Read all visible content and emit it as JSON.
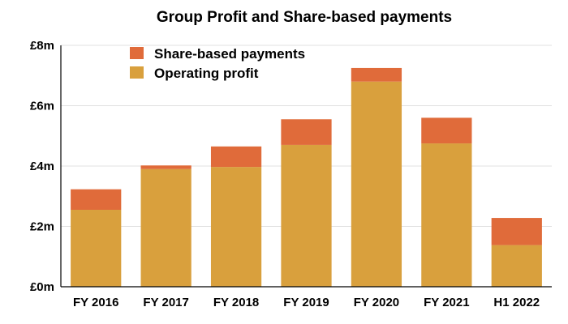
{
  "chart_data": {
    "type": "bar",
    "stacked": true,
    "title": "Group Profit and Share-based payments",
    "xlabel": "",
    "ylabel": "",
    "categories": [
      "FY 2016",
      "FY 2017",
      "FY 2018",
      "FY 2019",
      "FY 2020",
      "FY 2021",
      "H1 2022"
    ],
    "series": [
      {
        "name": "Operating profit",
        "color": "#D9A03D",
        "values": [
          2.55,
          3.9,
          3.97,
          4.7,
          6.8,
          4.75,
          1.38
        ]
      },
      {
        "name": "Share-based payments",
        "color": "#E06B3A",
        "values": [
          0.68,
          0.12,
          0.68,
          0.85,
          0.45,
          0.85,
          0.9
        ]
      }
    ],
    "ylim": [
      0,
      8
    ],
    "yticks": [
      0,
      2,
      4,
      6,
      8
    ],
    "ytick_labels": [
      "£0m",
      "£2m",
      "£4m",
      "£6m",
      "£8m"
    ],
    "grid": true,
    "legend_position": "top-left"
  }
}
